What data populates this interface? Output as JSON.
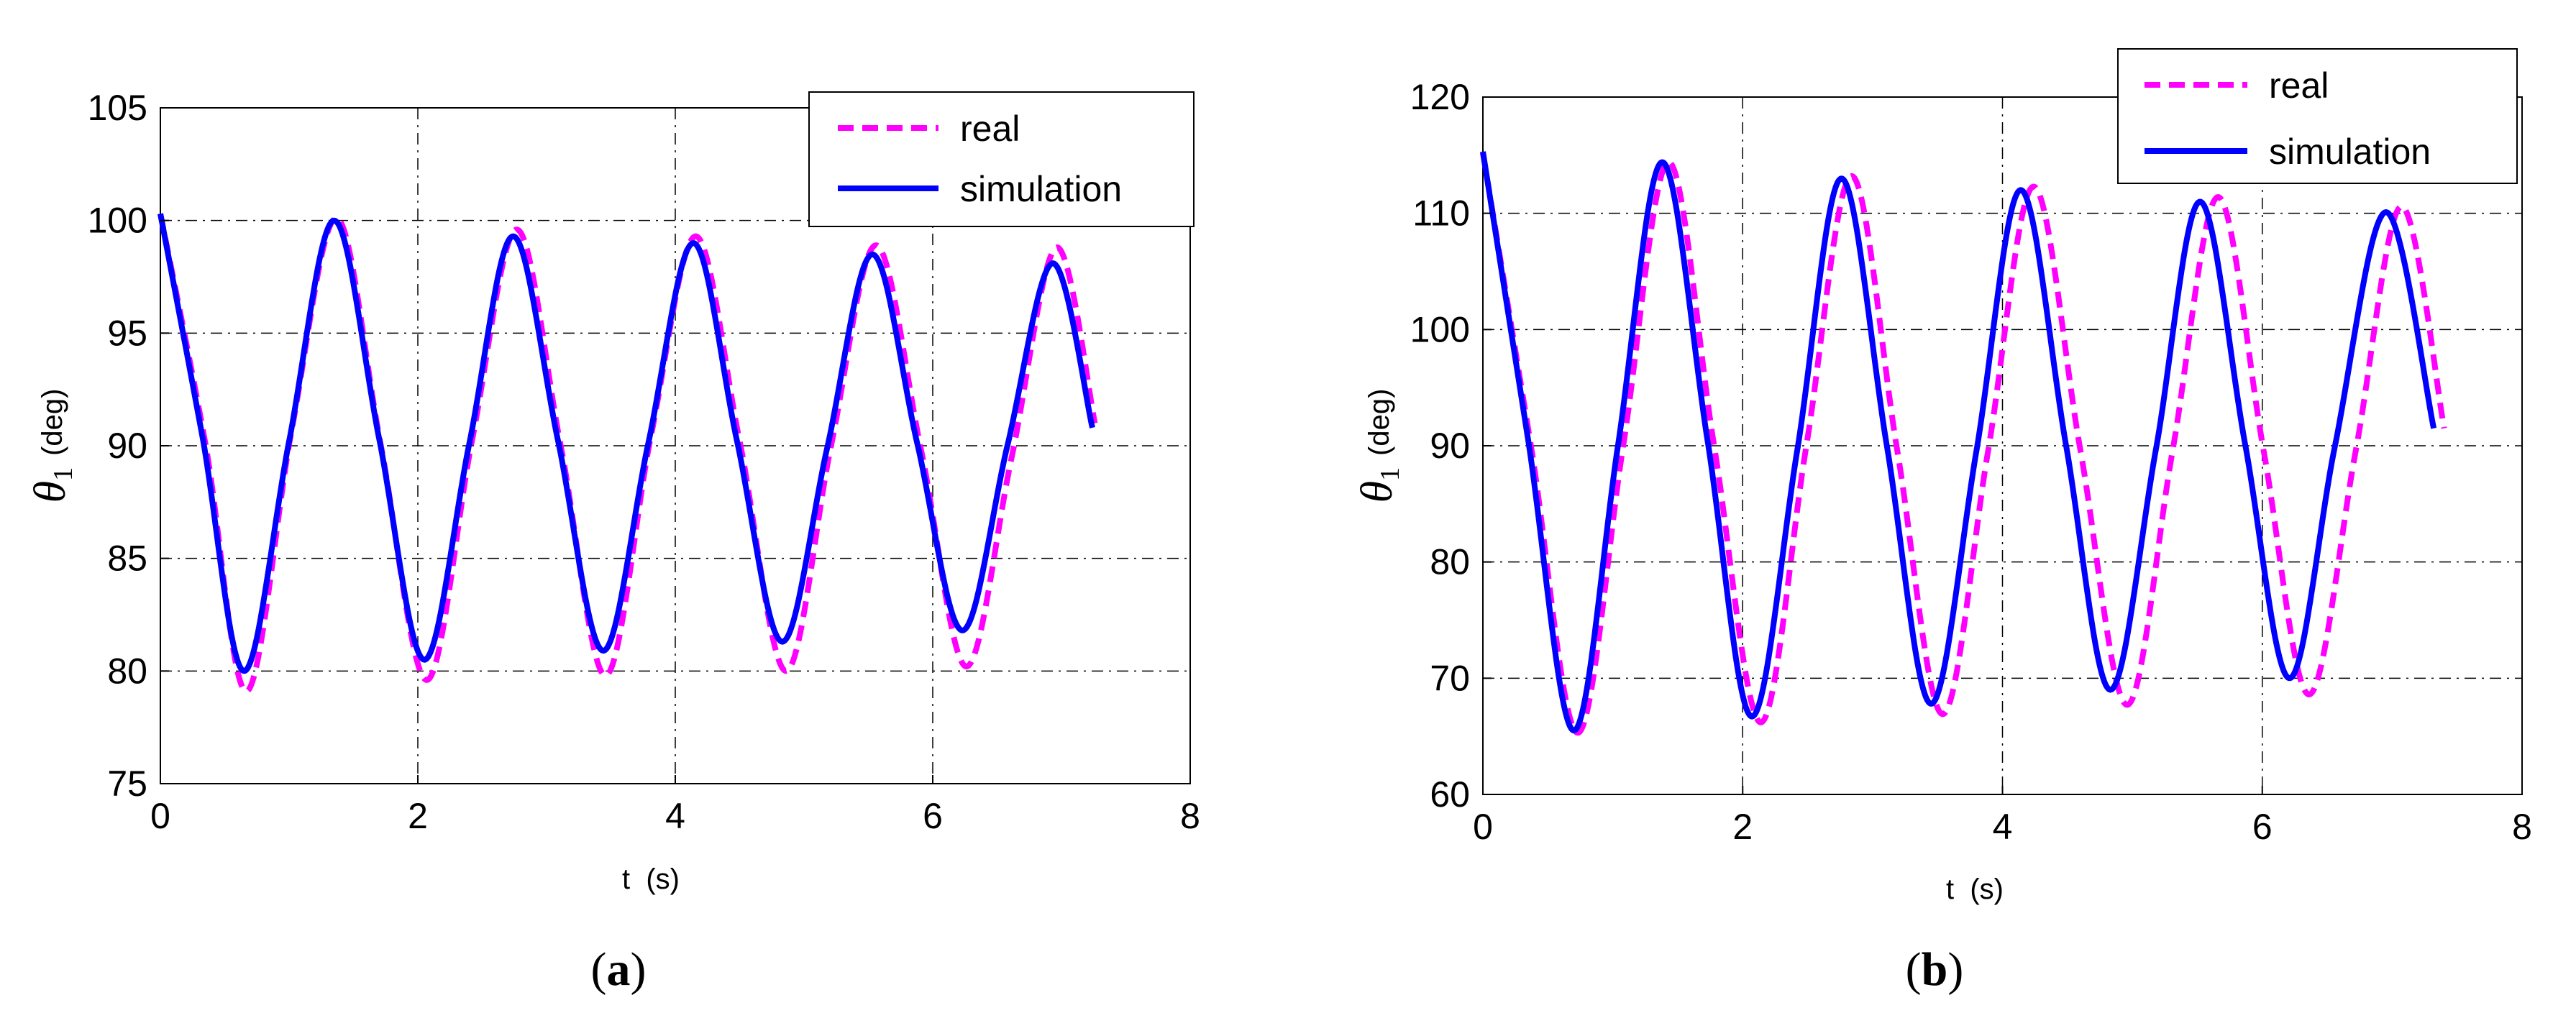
{
  "chart_data": [
    {
      "type": "line",
      "panel_label": "a",
      "xlabel": "t  (s)",
      "ylabel": "θ1 (deg)",
      "ylabel_symbol": "θ",
      "ylabel_subscript": "1",
      "ylabel_unit": "(deg)",
      "xlim": [
        0,
        8
      ],
      "ylim": [
        75,
        105
      ],
      "xticks": [
        0,
        2,
        4,
        6,
        8
      ],
      "yticks": [
        75,
        80,
        85,
        90,
        95,
        100,
        105
      ],
      "grid": true,
      "legend_position": "top-right",
      "series": [
        {
          "name": "real",
          "color": "#ff00ff",
          "dash": "dashed",
          "x": [
            0,
            0.35,
            0.67,
            1.02,
            1.37,
            1.71,
            2.07,
            2.42,
            2.77,
            3.11,
            3.46,
            3.81,
            4.16,
            4.5,
            4.86,
            5.21,
            5.56,
            5.91,
            6.26,
            6.61,
            6.96,
            7.26
          ],
          "y": [
            100.3,
            90.1,
            79.1,
            90.7,
            100.1,
            90.1,
            79.6,
            90.2,
            99.6,
            90.0,
            79.8,
            90.4,
            99.3,
            90.2,
            80.0,
            90.0,
            98.9,
            89.8,
            80.2,
            89.4,
            98.8,
            91.0
          ]
        },
        {
          "name": "simulation",
          "color": "#0000ff",
          "dash": "solid",
          "x": [
            0,
            0.33,
            0.65,
            1.0,
            1.35,
            1.7,
            2.05,
            2.4,
            2.74,
            3.09,
            3.44,
            3.79,
            4.14,
            4.48,
            4.83,
            5.18,
            5.53,
            5.88,
            6.23,
            6.58,
            6.93,
            7.24
          ],
          "y": [
            100.3,
            90.3,
            80.0,
            90.2,
            100.0,
            90.3,
            80.5,
            90.1,
            99.3,
            90.2,
            80.9,
            90.1,
            99.0,
            90.2,
            81.3,
            89.9,
            98.5,
            90.1,
            81.8,
            90.0,
            98.1,
            90.8
          ]
        }
      ]
    },
    {
      "type": "line",
      "panel_label": "b",
      "xlabel": "t  (s)",
      "ylabel": "θ1 (deg)",
      "ylabel_symbol": "θ",
      "ylabel_subscript": "1",
      "ylabel_unit": "(deg)",
      "xlim": [
        0,
        8
      ],
      "ylim": [
        60,
        120
      ],
      "xticks": [
        0,
        2,
        4,
        6,
        8
      ],
      "yticks": [
        60,
        70,
        80,
        90,
        100,
        110,
        120
      ],
      "grid": true,
      "legend_position": "top-right",
      "series": [
        {
          "name": "real",
          "color": "#ff00ff",
          "dash": "dashed",
          "x": [
            0,
            0.37,
            0.73,
            1.08,
            1.43,
            1.78,
            2.14,
            2.49,
            2.84,
            3.19,
            3.54,
            3.89,
            4.24,
            4.6,
            4.96,
            5.31,
            5.66,
            6.01,
            6.36,
            6.72,
            7.07,
            7.4
          ],
          "y": [
            115.2,
            90.0,
            65.3,
            90.0,
            114.4,
            90.0,
            66.2,
            90.0,
            113.2,
            89.6,
            66.9,
            89.6,
            112.3,
            89.6,
            67.7,
            89.6,
            111.4,
            89.6,
            68.6,
            89.6,
            110.6,
            91.5
          ]
        },
        {
          "name": "simulation",
          "color": "#0000ff",
          "dash": "solid",
          "x": [
            0,
            0.35,
            0.7,
            1.04,
            1.38,
            1.73,
            2.07,
            2.42,
            2.76,
            3.11,
            3.45,
            3.8,
            4.14,
            4.49,
            4.83,
            5.18,
            5.52,
            5.87,
            6.21,
            6.56,
            6.95,
            7.32
          ],
          "y": [
            115.3,
            90.4,
            65.5,
            90.0,
            114.4,
            90.4,
            66.7,
            89.6,
            113.0,
            90.0,
            67.8,
            89.6,
            112.0,
            90.0,
            69.0,
            89.6,
            111.0,
            90.0,
            70.0,
            90.0,
            110.1,
            91.5
          ]
        }
      ]
    }
  ]
}
